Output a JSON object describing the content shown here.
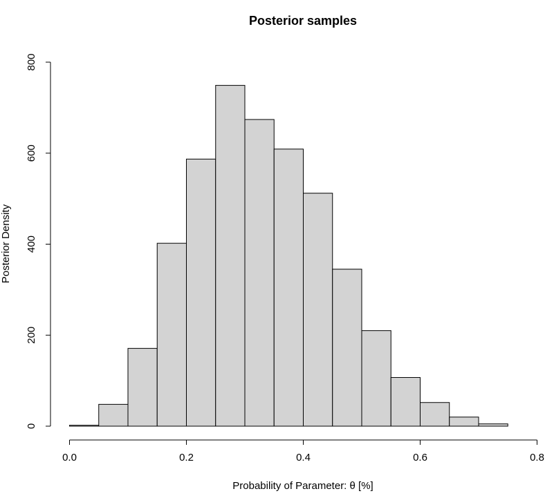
{
  "chart_data": {
    "type": "bar",
    "title": "Posterior samples",
    "xlabel": "Probability of Parameter: θ [%]",
    "ylabel": "Posterior Density",
    "bin_width": 0.05,
    "bins": [
      {
        "start": 0.0,
        "end": 0.05,
        "value": 2
      },
      {
        "start": 0.05,
        "end": 0.1,
        "value": 48
      },
      {
        "start": 0.1,
        "end": 0.15,
        "value": 171
      },
      {
        "start": 0.15,
        "end": 0.2,
        "value": 402
      },
      {
        "start": 0.2,
        "end": 0.25,
        "value": 587
      },
      {
        "start": 0.25,
        "end": 0.3,
        "value": 749
      },
      {
        "start": 0.3,
        "end": 0.35,
        "value": 674
      },
      {
        "start": 0.35,
        "end": 0.4,
        "value": 609
      },
      {
        "start": 0.4,
        "end": 0.45,
        "value": 512
      },
      {
        "start": 0.45,
        "end": 0.5,
        "value": 345
      },
      {
        "start": 0.5,
        "end": 0.55,
        "value": 210
      },
      {
        "start": 0.55,
        "end": 0.6,
        "value": 107
      },
      {
        "start": 0.6,
        "end": 0.65,
        "value": 52
      },
      {
        "start": 0.65,
        "end": 0.7,
        "value": 20
      },
      {
        "start": 0.7,
        "end": 0.75,
        "value": 5
      }
    ],
    "xlim": [
      0.0,
      0.8
    ],
    "ylim": [
      0,
      800
    ],
    "x_ticks": [
      0.0,
      0.2,
      0.4,
      0.6,
      0.8
    ],
    "x_tick_labels": [
      "0.0",
      "0.2",
      "0.4",
      "0.6",
      "0.8"
    ],
    "y_ticks": [
      0,
      200,
      400,
      600,
      800
    ],
    "y_tick_labels": [
      "0",
      "200",
      "400",
      "600",
      "800"
    ],
    "grid": false,
    "bar_fill": "#d3d3d3",
    "bar_stroke": "#000000"
  }
}
